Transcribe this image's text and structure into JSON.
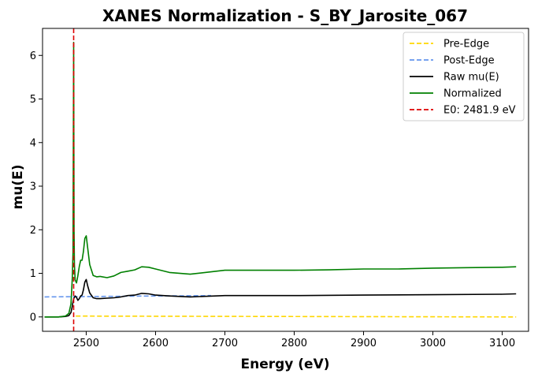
{
  "chart_data": {
    "type": "line",
    "title": "XANES Normalization - S_BY_Jarosite_067",
    "xlabel": "Energy (eV)",
    "ylabel": "mu(E)",
    "xlim": [
      2437,
      3138
    ],
    "ylim": [
      -0.33,
      6.62
    ],
    "xticks": [
      2500,
      2600,
      2700,
      2800,
      2900,
      3000,
      3100
    ],
    "yticks": [
      0,
      1,
      2,
      3,
      4,
      5,
      6
    ],
    "grid": false,
    "legend_position": "top-right",
    "vlines": [
      {
        "x": 2481.9,
        "color": "#dd0000",
        "style": "dashed"
      }
    ],
    "series": [
      {
        "name": "Pre-Edge",
        "color": "#ffd700",
        "style": "dashed",
        "x": [
          2485,
          3120
        ],
        "y": [
          0.02,
          0.0
        ]
      },
      {
        "name": "Post-Edge",
        "color": "#6495ed",
        "style": "dashed",
        "x": [
          2440,
          2480,
          2520,
          2560,
          2600,
          2640,
          2680
        ],
        "y": [
          0.46,
          0.465,
          0.47,
          0.475,
          0.48,
          0.485,
          0.49
        ]
      },
      {
        "name": "Raw mu(E)",
        "color": "#000000",
        "style": "solid",
        "x": [
          2440,
          2460,
          2470,
          2475,
          2478,
          2480,
          2481,
          2482,
          2484,
          2486,
          2488,
          2490,
          2492,
          2494,
          2496,
          2498,
          2500,
          2502,
          2505,
          2510,
          2515,
          2520,
          2530,
          2540,
          2550,
          2560,
          2570,
          2580,
          2590,
          2600,
          2620,
          2650,
          2700,
          2750,
          2800,
          2900,
          3000,
          3100,
          3120
        ],
        "y": [
          0.0,
          0.0,
          0.01,
          0.03,
          0.1,
          0.25,
          0.35,
          0.42,
          0.48,
          0.45,
          0.38,
          0.42,
          0.48,
          0.5,
          0.62,
          0.8,
          0.86,
          0.72,
          0.55,
          0.44,
          0.42,
          0.42,
          0.43,
          0.44,
          0.46,
          0.49,
          0.5,
          0.54,
          0.53,
          0.5,
          0.48,
          0.46,
          0.49,
          0.49,
          0.49,
          0.5,
          0.51,
          0.52,
          0.53
        ]
      },
      {
        "name": "Normalized",
        "color": "#008000",
        "style": "solid",
        "x": [
          2440,
          2460,
          2470,
          2475,
          2478,
          2480,
          2481,
          2481.9,
          2482.5,
          2483,
          2484,
          2486,
          2488,
          2490,
          2492,
          2494,
          2496,
          2498,
          2500,
          2502,
          2505,
          2510,
          2515,
          2520,
          2530,
          2540,
          2550,
          2560,
          2570,
          2580,
          2590,
          2600,
          2620,
          2650,
          2700,
          2750,
          2800,
          2850,
          2900,
          2950,
          3000,
          3050,
          3100,
          3120
        ],
        "y": [
          0.0,
          0.0,
          0.02,
          0.08,
          0.3,
          0.9,
          1.5,
          6.3,
          2.0,
          1.2,
          0.85,
          0.78,
          0.95,
          1.15,
          1.3,
          1.3,
          1.5,
          1.8,
          1.86,
          1.6,
          1.2,
          0.95,
          0.92,
          0.93,
          0.9,
          0.94,
          1.02,
          1.05,
          1.08,
          1.15,
          1.14,
          1.1,
          1.02,
          0.98,
          1.07,
          1.07,
          1.07,
          1.08,
          1.1,
          1.1,
          1.12,
          1.13,
          1.14,
          1.15
        ]
      },
      {
        "name": "E0: 2481.9 eV",
        "color": "#dd0000",
        "style": "dashed",
        "x": [
          2481.9,
          2481.9
        ],
        "y": [
          -0.33,
          6.62
        ]
      }
    ]
  }
}
